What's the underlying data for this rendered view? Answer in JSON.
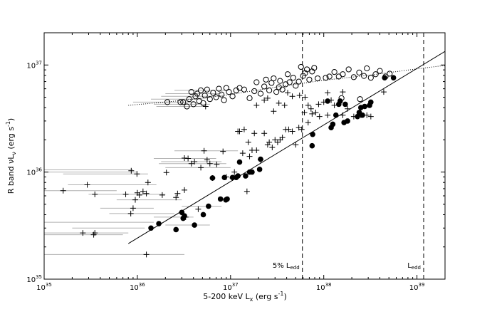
{
  "chart_data": {
    "type": "scatter",
    "x_scale": "log",
    "y_scale": "log",
    "xlim": [
      1e+35,
      2e+39
    ],
    "ylim": [
      1e+35,
      2e+37
    ],
    "xlabel_parts": [
      "5-200 keV L",
      "x",
      " (erg s",
      "-1",
      ")"
    ],
    "ylabel_parts": [
      "R band νL",
      "ν",
      " (erg s",
      "-1",
      ")"
    ],
    "x_ticks": [
      {
        "v": 1e+35,
        "b": "10",
        "e": "35"
      },
      {
        "v": 1e+36,
        "b": "10",
        "e": "36"
      },
      {
        "v": 1e+37,
        "b": "10",
        "e": "37"
      },
      {
        "v": 1e+38,
        "b": "10",
        "e": "38"
      },
      {
        "v": 1e+39,
        "b": "10",
        "e": "39"
      }
    ],
    "y_ticks": [
      {
        "v": 1e+35,
        "b": "10",
        "e": "35"
      },
      {
        "v": 1e+36,
        "b": "10",
        "e": "36"
      },
      {
        "v": 1e+37,
        "b": "10",
        "e": "37"
      }
    ],
    "grid": false,
    "vlines": [
      {
        "x": 5.9e+37,
        "label_main": "5% L",
        "label_sub": "edd"
      },
      {
        "x": 1.18e+39,
        "label_main": "L",
        "label_sub": "edd"
      }
    ],
    "fit_line": {
      "x": [
        8e+35,
        2e+39
      ],
      "y": [
        2.15e+35,
        1.34e+37
      ]
    },
    "dotted_curve": [
      [
        8e+35,
        4.2e+36
      ],
      [
        2e+36,
        4.5e+36
      ],
      [
        5e+36,
        4.9e+36
      ],
      [
        1e+37,
        5.3e+36
      ],
      [
        3e+37,
        6.2e+36
      ],
      [
        1e+38,
        7.2e+36
      ],
      [
        3e+38,
        8e+36
      ],
      [
        1e+39,
        9.2e+36
      ],
      [
        2e+39,
        9.9e+36
      ]
    ],
    "series": [
      {
        "marker": "open-circle",
        "points": [
          [
            2.1e+36,
            4.5e+36
          ],
          [
            2.9e+36,
            4.5e+36
          ],
          [
            3.1e+36,
            4.5e+36
          ],
          [
            3.4e+36,
            4.1e+36
          ],
          [
            3.6e+36,
            4.8e+36
          ],
          [
            3.8e+36,
            5.6e+36
          ],
          [
            4e+36,
            4.3e+36
          ],
          [
            4.2e+36,
            5.1e+36
          ],
          [
            4.4e+36,
            5.4e+36
          ],
          [
            4.6e+36,
            4.6e+36
          ],
          [
            4.8e+36,
            5.8e+36
          ],
          [
            5.1e+36,
            4.4e+36
          ],
          [
            5.3e+36,
            5.2e+36
          ],
          [
            5.6e+36,
            5.9e+36
          ],
          [
            6e+36,
            4.8e+36
          ],
          [
            6.5e+36,
            5.5e+36
          ],
          [
            7e+36,
            5e+36
          ],
          [
            7.5e+36,
            6e+36
          ],
          [
            8e+36,
            5.3e+36
          ],
          [
            8.5e+36,
            4.7e+36
          ],
          [
            9e+36,
            6.1e+36
          ],
          [
            9.6e+36,
            5.6e+36
          ],
          [
            1.05e+37,
            5.1e+36
          ],
          [
            1.15e+37,
            5.8e+36
          ],
          [
            1.25e+37,
            6.1e+36
          ],
          [
            1.4e+37,
            5.9e+36
          ],
          [
            1.6e+37,
            4.9e+36
          ],
          [
            1.8e+37,
            5.7e+36
          ],
          [
            1.9e+37,
            6.9e+36
          ],
          [
            2.1e+37,
            5.4e+36
          ],
          [
            2.3e+37,
            6.3e+36
          ],
          [
            2.4e+37,
            7.3e+36
          ],
          [
            2.6e+37,
            5.8e+36
          ],
          [
            2.75e+37,
            6.8e+36
          ],
          [
            2.9e+37,
            7.5e+36
          ],
          [
            3.1e+37,
            5.6e+36
          ],
          [
            3.3e+37,
            6.2e+36
          ],
          [
            3.4e+37,
            7.1e+36
          ],
          [
            3.6e+37,
            5.9e+36
          ],
          [
            3.9e+37,
            6.6e+36
          ],
          [
            4.1e+37,
            8.2e+36
          ],
          [
            4.3e+37,
            6.9e+36
          ],
          [
            4.7e+37,
            7.6e+36
          ],
          [
            5e+37,
            6.4e+36
          ],
          [
            5.4e+37,
            7e+36
          ],
          [
            5.7e+37,
            9.6e+36
          ],
          [
            6e+37,
            7.9e+36
          ],
          [
            6.3e+37,
            8.4e+36
          ],
          [
            6.6e+37,
            9.1e+36
          ],
          [
            7e+37,
            7.3e+36
          ],
          [
            7.5e+37,
            8.7e+36
          ],
          [
            7.9e+37,
            9.4e+36
          ],
          [
            8.6e+37,
            7.5e+36
          ],
          [
            1.05e+38,
            7.6e+36
          ],
          [
            1.15e+38,
            7.8e+36
          ],
          [
            1.3e+38,
            8.6e+36
          ],
          [
            1.45e+38,
            7.8e+36
          ],
          [
            1.6e+38,
            8.2e+36
          ],
          [
            1.85e+38,
            9.1e+36
          ],
          [
            2.1e+38,
            7.7e+36
          ],
          [
            2.4e+38,
            8.5e+36
          ],
          [
            2.7e+38,
            7.9e+36
          ],
          [
            2.9e+38,
            9.3e+36
          ],
          [
            3.2e+38,
            7.6e+36
          ],
          [
            3.6e+38,
            8.2e+36
          ],
          [
            4e+38,
            8.8e+36
          ],
          [
            4.6e+38,
            7.8e+36
          ],
          [
            5.1e+38,
            8.3e+36
          ],
          [
            1.55e+38,
            4.9e+36
          ],
          [
            2.45e+38,
            4.8e+36
          ]
        ]
      },
      {
        "marker": "filled-circle",
        "points": [
          [
            1.4e+36,
            3e+35
          ],
          [
            1.7e+36,
            3.3e+35
          ],
          [
            2.6e+36,
            2.9e+35
          ],
          [
            3e+36,
            4.2e+35
          ],
          [
            3.1e+36,
            3.7e+35
          ],
          [
            3.2e+36,
            3.9e+35
          ],
          [
            4.1e+36,
            3.2e+35
          ],
          [
            5.1e+36,
            4e+35
          ],
          [
            5.8e+36,
            4.8e+35
          ],
          [
            6.4e+36,
            8.8e+35
          ],
          [
            7.8e+36,
            5.6e+35
          ],
          [
            8.6e+36,
            8.9e+35
          ],
          [
            8.9e+36,
            5.5e+35
          ],
          [
            9.2e+36,
            5.6e+35
          ],
          [
            1.05e+37,
            8.9e+35
          ],
          [
            1.15e+37,
            8.9e+35
          ],
          [
            1.2e+37,
            9.2e+35
          ],
          [
            1.25e+37,
            1.24e+36
          ],
          [
            1.45e+37,
            9.2e+35
          ],
          [
            1.6e+37,
            1e+36
          ],
          [
            1.7e+37,
            1e+36
          ],
          [
            2.05e+37,
            1.06e+36
          ],
          [
            2.1e+37,
            1.32e+36
          ],
          [
            7.5e+37,
            1.76e+36
          ],
          [
            7.6e+37,
            2.25e+36
          ],
          [
            1.1e+38,
            4.6e+36
          ],
          [
            1.2e+38,
            2.6e+36
          ],
          [
            1.25e+38,
            2.8e+36
          ],
          [
            1.35e+38,
            3.4e+36
          ],
          [
            1.45e+38,
            4.3e+36
          ],
          [
            1.5e+38,
            4.6e+36
          ],
          [
            1.65e+38,
            2.9e+36
          ],
          [
            1.7e+38,
            4.3e+36
          ],
          [
            1.8e+38,
            3e+36
          ],
          [
            2.3e+38,
            3.3e+36
          ],
          [
            2.4e+38,
            3.6e+36
          ],
          [
            2.5e+38,
            4e+36
          ],
          [
            2.6e+38,
            3.4e+36
          ],
          [
            2.75e+38,
            4.1e+36
          ],
          [
            3.1e+38,
            4.2e+36
          ],
          [
            3.2e+38,
            4.5e+36
          ],
          [
            4.5e+38,
            7.6e+36
          ],
          [
            5.6e+38,
            7.6e+36
          ]
        ]
      },
      {
        "marker": "plus",
        "points": [
          [
            2.6e+35,
            2.7e+35
          ],
          [
            3.4e+35,
            2.6e+35
          ],
          [
            3.5e+35,
            2.7e+35
          ],
          [
            1.6e+35,
            6.7e+35
          ],
          [
            2.9e+35,
            7.6e+35
          ],
          [
            3.5e+35,
            6.2e+35
          ],
          [
            7.5e+35,
            6.2e+35
          ],
          [
            8.5e+35,
            4.1e+35
          ],
          [
            9e+35,
            4.6e+35
          ],
          [
            9.5e+35,
            5.5e+35
          ],
          [
            1e+36,
            6.4e+35
          ],
          [
            1.05e+36,
            6.1e+35
          ],
          [
            1.15e+36,
            6.6e+35
          ],
          [
            1.25e+36,
            6.3e+35
          ],
          [
            1.3e+36,
            8e+35
          ],
          [
            8.6e+35,
            1.03e+36
          ],
          [
            9.9e+35,
            9.6e+35
          ],
          [
            1.25e+36,
            1.7e+35
          ],
          [
            1.85e+36,
            6.1e+35
          ],
          [
            2.05e+36,
            9.9e+35
          ],
          [
            2.6e+36,
            5.8e+35
          ],
          [
            2.7e+36,
            6.3e+35
          ],
          [
            3.2e+36,
            6.8e+35
          ],
          [
            3.3e+36,
            3.8e+35
          ],
          [
            3.5e+36,
            1.34e+36
          ],
          [
            3.2e+36,
            1.35e+36
          ],
          [
            3.8e+36,
            1.2e+36
          ],
          [
            4.1e+36,
            1.25e+36
          ],
          [
            4.5e+36,
            4.5e+35
          ],
          [
            4.8e+36,
            1.1e+36
          ],
          [
            5.2e+36,
            1.58e+36
          ],
          [
            5.6e+36,
            1.3e+36
          ],
          [
            6e+36,
            1.2e+36
          ],
          [
            6.4e+36,
            8.8e+35
          ],
          [
            7.1e+36,
            1.18e+36
          ],
          [
            8.3e+36,
            1.56e+36
          ],
          [
            9e+36,
            9e+35
          ],
          [
            1.05e+37,
            8.8e+35
          ],
          [
            1.1e+37,
            1e+36
          ],
          [
            1.2e+37,
            2.4e+36
          ],
          [
            1.25e+37,
            2.4e+36
          ],
          [
            1.35e+37,
            1.5e+36
          ],
          [
            1.4e+37,
            2.5e+36
          ],
          [
            1.5e+37,
            6.6e+35
          ],
          [
            1.55e+37,
            1.9e+36
          ],
          [
            1.6e+37,
            1.4e+36
          ],
          [
            1.7e+37,
            1.6e+36
          ],
          [
            1.8e+37,
            2.3e+36
          ],
          [
            1.9e+37,
            1.6e+36
          ],
          [
            2.1e+37,
            1.3e+36
          ],
          [
            2.3e+37,
            2.3e+36
          ],
          [
            2.5e+37,
            1.8e+36
          ],
          [
            2.6e+37,
            1.9e+36
          ],
          [
            2.8e+37,
            1.7e+36
          ],
          [
            3e+37,
            2e+36
          ],
          [
            3.2e+37,
            1.9e+36
          ],
          [
            3.4e+37,
            2e+36
          ],
          [
            3.6e+37,
            2.1e+36
          ],
          [
            3.9e+37,
            2.5e+36
          ],
          [
            4.2e+37,
            2.5e+36
          ],
          [
            4.6e+37,
            2.4e+36
          ],
          [
            5e+37,
            1.8e+36
          ],
          [
            5.4e+37,
            2.6e+36
          ],
          [
            5.8e+37,
            2.5e+36
          ],
          [
            6.2e+37,
            3.6e+36
          ],
          [
            6.8e+37,
            2.9e+36
          ],
          [
            7.5e+37,
            3.5e+36
          ],
          [
            8.2e+37,
            3.6e+36
          ],
          [
            9e+37,
            3.3e+36
          ],
          [
            1.1e+38,
            3.4e+36
          ],
          [
            1.3e+38,
            4.2e+36
          ],
          [
            1.6e+38,
            3.4e+36
          ],
          [
            2.1e+38,
            3.3e+36
          ],
          [
            2.5e+38,
            3.4e+36
          ],
          [
            2.9e+38,
            3.4e+36
          ],
          [
            3.2e+38,
            3.3e+36
          ],
          [
            2.5e+37,
            4.9e+36
          ],
          [
            2.9e+37,
            3.7e+36
          ],
          [
            3.3e+37,
            4.4e+36
          ],
          [
            3.8e+37,
            4.2e+36
          ],
          [
            4.1e+37,
            5.5e+36
          ],
          [
            4.6e+37,
            5.1e+36
          ],
          [
            5.5e+37,
            5.2e+36
          ],
          [
            6.3e+37,
            5e+36
          ],
          [
            6.8e+37,
            4.2e+36
          ],
          [
            7.3e+37,
            3.9e+36
          ],
          [
            8.8e+37,
            4.3e+36
          ],
          [
            1e+38,
            4.5e+36
          ],
          [
            1.1e+38,
            5.5e+36
          ],
          [
            1.2e+38,
            4.7e+36
          ],
          [
            1.6e+38,
            5.6e+36
          ],
          [
            1.8e+38,
            3.9e+36
          ],
          [
            1.9e+37,
            4.2e+36
          ],
          [
            2.3e+37,
            4.7e+36
          ],
          [
            5.4e+36,
            4.1e+36
          ],
          [
            4.4e+38,
            5.6e+36
          ]
        ]
      }
    ],
    "error_bars": [
      {
        "y": 1.05e+36,
        "x0": 1e+35,
        "x1": 9e+35
      },
      {
        "y": 1e+36,
        "x0": 1e+35,
        "x1": 1e+36
      },
      {
        "y": 9.6e+35,
        "x0": 1.6e+35,
        "x1": 1.3e+36
      },
      {
        "y": 6.7e+35,
        "x0": 1e+35,
        "x1": 6e+35
      },
      {
        "y": 6.2e+35,
        "x0": 3e+35,
        "x1": 2e+36
      },
      {
        "y": 4.6e+35,
        "x0": 4e+35,
        "x1": 1.5e+36
      },
      {
        "y": 4.1e+35,
        "x0": 5e+35,
        "x1": 2.5e+36
      },
      {
        "y": 3.4e+35,
        "x0": 1e+35,
        "x1": 1.5e+36
      },
      {
        "y": 3e+35,
        "x0": 2e+35,
        "x1": 1.2e+36
      },
      {
        "y": 2.7e+35,
        "x0": 1e+35,
        "x1": 8e+35
      },
      {
        "y": 2.6e+35,
        "x0": 1e+35,
        "x1": 7e+35
      },
      {
        "y": 1.7e+35,
        "x0": 1e+35,
        "x1": 3.2e+36
      },
      {
        "y": 7.6e+35,
        "x0": 1.8e+35,
        "x1": 1.6e+36
      },
      {
        "y": 5.5e+35,
        "x0": 6e+35,
        "x1": 3e+36
      },
      {
        "y": 1.34e+36,
        "x0": 1.5e+36,
        "x1": 7e+36
      },
      {
        "y": 1.25e+36,
        "x0": 1.8e+36,
        "x1": 8e+36
      },
      {
        "y": 1.2e+36,
        "x0": 1.7e+36,
        "x1": 9e+36
      },
      {
        "y": 1.1e+36,
        "x0": 2e+36,
        "x1": 1e+37
      },
      {
        "y": 1.58e+36,
        "x0": 2.5e+36,
        "x1": 1.2e+37
      },
      {
        "y": 4.5e+36,
        "x0": 9e+35,
        "x1": 4e+36
      },
      {
        "y": 4.8e+36,
        "x0": 1.4e+36,
        "x1": 5e+36
      },
      {
        "y": 5.1e+36,
        "x0": 1.8e+36,
        "x1": 7e+36
      },
      {
        "y": 5.4e+36,
        "x0": 2e+36,
        "x1": 8e+36
      },
      {
        "y": 4.3e+36,
        "x0": 1.5e+36,
        "x1": 6e+36
      },
      {
        "y": 5.8e+36,
        "x0": 2.5e+36,
        "x1": 9e+36
      },
      {
        "y": 4.1e+36,
        "x0": 1.6e+36,
        "x1": 5e+36
      },
      {
        "y": 3.8e+35,
        "x0": 1.5e+36,
        "x1": 4e+36
      },
      {
        "y": 4.8e+35,
        "x0": 3e+36,
        "x1": 8e+36
      },
      {
        "y": 3.2e+35,
        "x0": 2e+36,
        "x1": 6e+36
      }
    ]
  }
}
